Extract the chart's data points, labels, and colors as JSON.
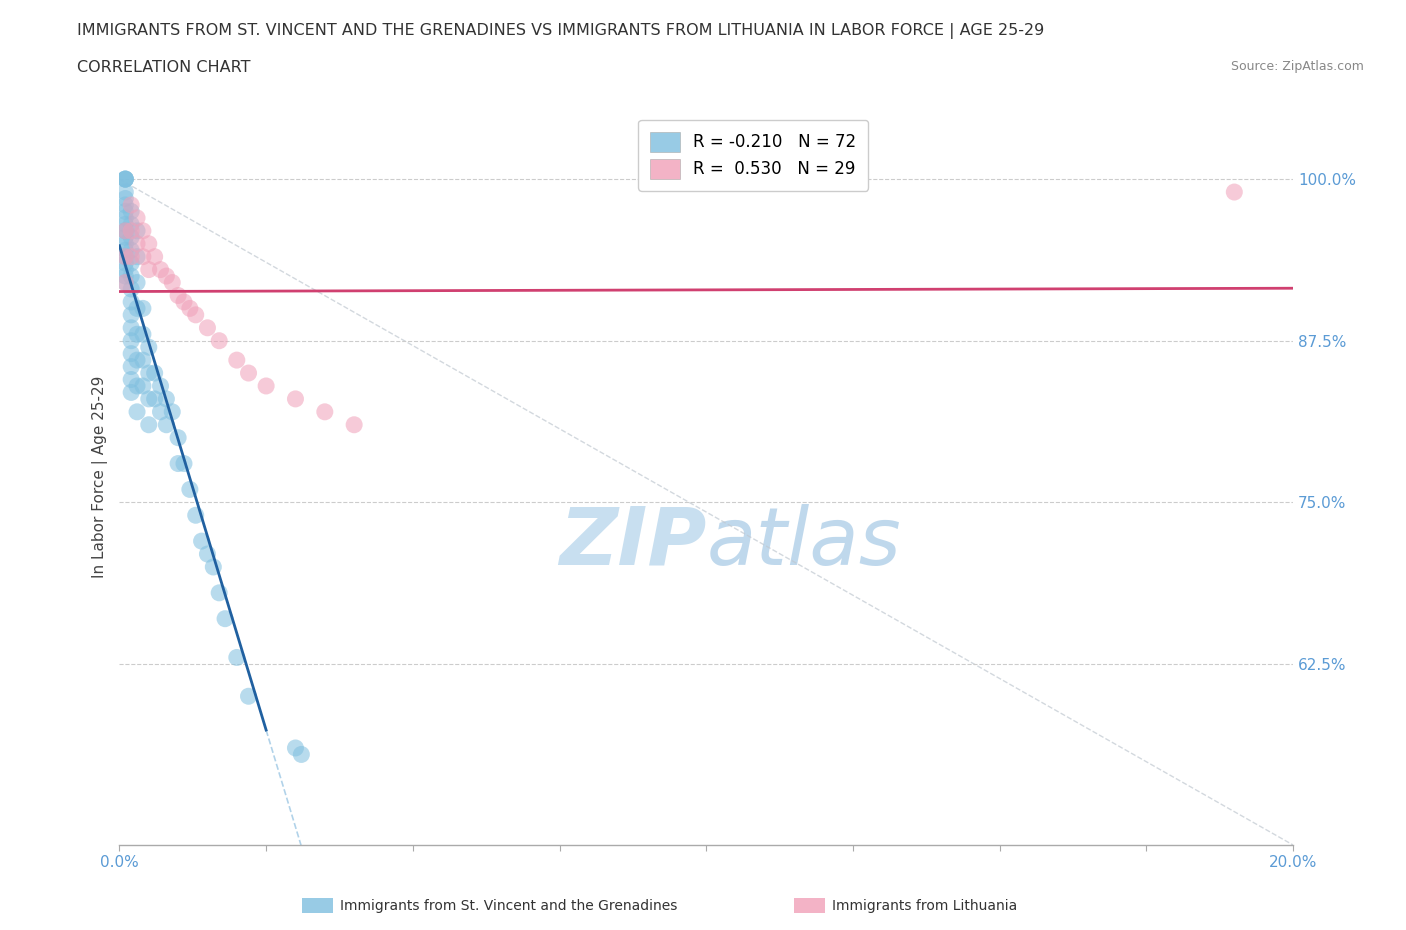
{
  "title_line1": "IMMIGRANTS FROM ST. VINCENT AND THE GRENADINES VS IMMIGRANTS FROM LITHUANIA IN LABOR FORCE | AGE 25-29",
  "title_line2": "CORRELATION CHART",
  "source": "Source: ZipAtlas.com",
  "ylabel": "In Labor Force | Age 25-29",
  "xlim": [
    0.0,
    0.2
  ],
  "ylim": [
    0.485,
    1.055
  ],
  "yticks": [
    0.625,
    0.75,
    0.875,
    1.0
  ],
  "ytick_labels": [
    "62.5%",
    "75.0%",
    "87.5%",
    "100.0%"
  ],
  "xtick_vals": [
    0.0,
    0.025,
    0.05,
    0.075,
    0.1,
    0.125,
    0.15,
    0.175,
    0.2
  ],
  "xtick_labels": [
    "0.0%",
    "",
    "",
    "",
    "",
    "",
    "",
    "",
    "20.0%"
  ],
  "color_blue": "#7fbfdf",
  "color_pink": "#f0a0b8",
  "color_blue_line": "#2060a0",
  "color_pink_line": "#d04070",
  "color_blue_dashed": "#90c0e0",
  "color_gray_dashed": "#c0c8d0",
  "watermark_zip_color": "#c8dff0",
  "watermark_atlas_color": "#b0cfe8",
  "sv_x": [
    0.001,
    0.001,
    0.001,
    0.001,
    0.001,
    0.001,
    0.001,
    0.001,
    0.001,
    0.001,
    0.001,
    0.001,
    0.001,
    0.001,
    0.001,
    0.001,
    0.001,
    0.001,
    0.001,
    0.001,
    0.002,
    0.002,
    0.002,
    0.002,
    0.002,
    0.002,
    0.002,
    0.002,
    0.002,
    0.002,
    0.002,
    0.002,
    0.002,
    0.002,
    0.002,
    0.003,
    0.003,
    0.003,
    0.003,
    0.003,
    0.003,
    0.003,
    0.003,
    0.004,
    0.004,
    0.004,
    0.004,
    0.005,
    0.005,
    0.005,
    0.005,
    0.006,
    0.006,
    0.007,
    0.007,
    0.008,
    0.008,
    0.009,
    0.01,
    0.01,
    0.011,
    0.012,
    0.013,
    0.014,
    0.015,
    0.016,
    0.017,
    0.018,
    0.02,
    0.022,
    0.03,
    0.031
  ],
  "sv_y": [
    1.0,
    1.0,
    1.0,
    1.0,
    0.99,
    0.985,
    0.98,
    0.975,
    0.97,
    0.965,
    0.96,
    0.96,
    0.955,
    0.95,
    0.945,
    0.94,
    0.935,
    0.93,
    0.925,
    0.92,
    0.975,
    0.965,
    0.955,
    0.945,
    0.935,
    0.925,
    0.915,
    0.905,
    0.895,
    0.885,
    0.875,
    0.865,
    0.855,
    0.845,
    0.835,
    0.96,
    0.94,
    0.92,
    0.9,
    0.88,
    0.86,
    0.84,
    0.82,
    0.9,
    0.88,
    0.86,
    0.84,
    0.87,
    0.85,
    0.83,
    0.81,
    0.85,
    0.83,
    0.84,
    0.82,
    0.83,
    0.81,
    0.82,
    0.8,
    0.78,
    0.78,
    0.76,
    0.74,
    0.72,
    0.71,
    0.7,
    0.68,
    0.66,
    0.63,
    0.6,
    0.56,
    0.555
  ],
  "lt_x": [
    0.001,
    0.001,
    0.001,
    0.002,
    0.002,
    0.002,
    0.003,
    0.003,
    0.004,
    0.004,
    0.005,
    0.005,
    0.006,
    0.007,
    0.008,
    0.009,
    0.01,
    0.011,
    0.012,
    0.013,
    0.015,
    0.017,
    0.02,
    0.022,
    0.025,
    0.03,
    0.035,
    0.04,
    0.19
  ],
  "lt_y": [
    0.96,
    0.94,
    0.92,
    0.98,
    0.96,
    0.94,
    0.97,
    0.95,
    0.96,
    0.94,
    0.95,
    0.93,
    0.94,
    0.93,
    0.925,
    0.92,
    0.91,
    0.905,
    0.9,
    0.895,
    0.885,
    0.875,
    0.86,
    0.85,
    0.84,
    0.83,
    0.82,
    0.81,
    0.99
  ]
}
